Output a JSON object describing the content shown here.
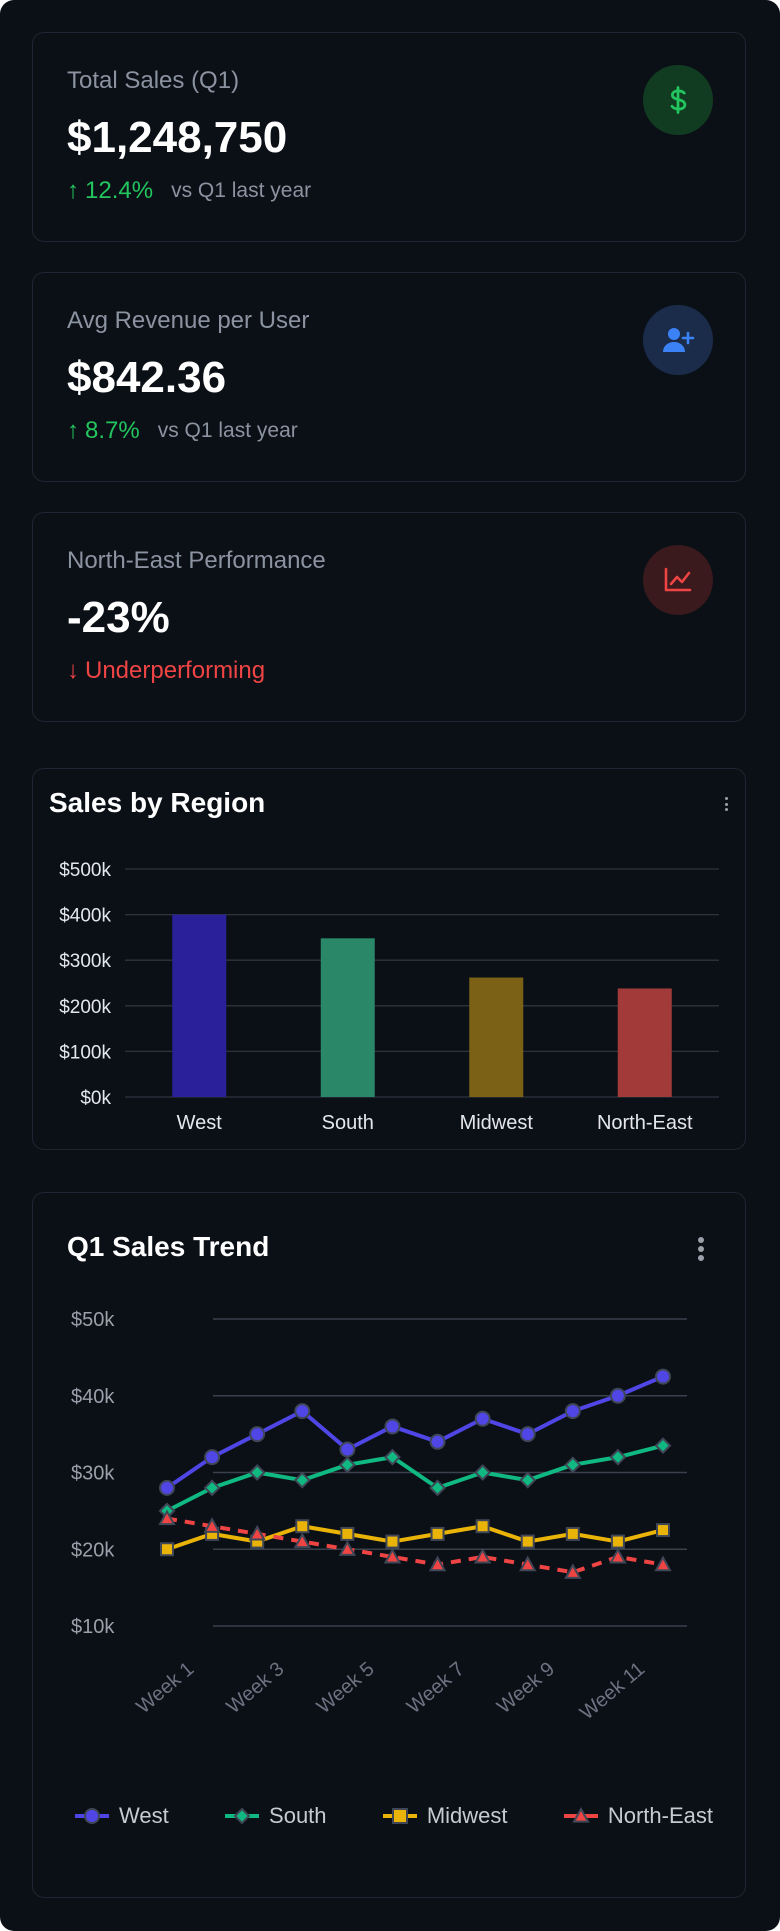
{
  "kpis": [
    {
      "label": "Total Sales (Q1)",
      "value": "$1,248,750",
      "delta": "12.4%",
      "comparison": "vs Q1 last year",
      "trend": "up",
      "icon": "dollar-icon",
      "badge_bg": "#123c22",
      "icon_color": "#22c55e"
    },
    {
      "label": "Avg Revenue per User",
      "value": "$842.36",
      "delta": "8.7%",
      "comparison": "vs Q1 last year",
      "trend": "up",
      "icon": "user-plus-icon",
      "badge_bg": "#1a2c4a",
      "icon_color": "#3b82f6"
    },
    {
      "label": "North-East Performance",
      "value": "-23%",
      "delta": "Underperforming",
      "comparison": "",
      "trend": "down",
      "icon": "chart-line-icon",
      "badge_bg": "#3a1a1c",
      "icon_color": "#ef4444"
    }
  ],
  "bar_card": {
    "title": "Sales by Region"
  },
  "line_card": {
    "title": "Q1 Sales Trend"
  },
  "chart_data": [
    {
      "type": "bar",
      "title": "Sales by Region",
      "categories": [
        "West",
        "South",
        "Midwest",
        "North-East"
      ],
      "values": [
        400,
        348,
        262,
        238
      ],
      "unit": "k",
      "ylim": [
        0,
        500
      ],
      "yticks": [
        "$0k",
        "$100k",
        "$200k",
        "$300k",
        "$400k",
        "$500k"
      ],
      "grid": true,
      "colors": [
        "#29209a",
        "#2a8767",
        "#7a6116",
        "#a33a3a"
      ]
    },
    {
      "type": "line",
      "title": "Q1 Sales Trend",
      "x": [
        "Week 1",
        "Week 2",
        "Week 3",
        "Week 4",
        "Week 5",
        "Week 6",
        "Week 7",
        "Week 8",
        "Week 9",
        "Week 10",
        "Week 11",
        "Week 12"
      ],
      "xticks_shown": [
        "Week 1",
        "Week 3",
        "Week 5",
        "Week 7",
        "Week 9",
        "Week 11"
      ],
      "ylim": [
        10,
        50
      ],
      "yticks": [
        "$10k",
        "$20k",
        "$30k",
        "$40k",
        "$50k"
      ],
      "grid": true,
      "legend_position": "bottom",
      "series": [
        {
          "name": "West",
          "values": [
            28,
            32,
            35,
            38,
            33,
            36,
            34,
            37,
            35,
            38,
            40,
            42.5
          ],
          "color": "#4f46e5",
          "marker": "circle"
        },
        {
          "name": "South",
          "values": [
            25,
            28,
            30,
            29,
            31,
            32,
            28,
            30,
            29,
            31,
            32,
            33.5
          ],
          "color": "#10b981",
          "marker": "diamond"
        },
        {
          "name": "Midwest",
          "values": [
            20,
            22,
            21,
            23,
            22,
            21,
            22,
            23,
            21,
            22,
            21,
            22.5
          ],
          "color": "#eab308",
          "marker": "square"
        },
        {
          "name": "North-East",
          "values": [
            24,
            23,
            22,
            21,
            20,
            19,
            18,
            19,
            18,
            17,
            19,
            18
          ],
          "color": "#ef4444",
          "marker": "triangle",
          "dashed": true
        }
      ]
    }
  ]
}
